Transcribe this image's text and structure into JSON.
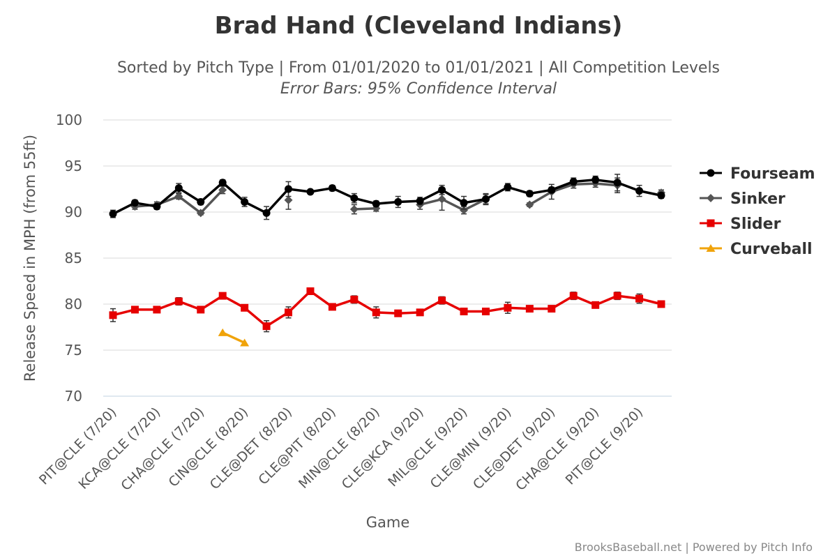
{
  "chart_data": {
    "type": "line",
    "title": "Brad Hand (Cleveland Indians)",
    "subtitle": "Sorted by Pitch Type | From 01/01/2020 to 01/01/2021 | All Competition Levels",
    "subtitle2": "Error Bars: 95% Confidence Interval",
    "xlabel": "Game",
    "ylabel": "Release Speed in MPH (from 55ft)",
    "ylim": [
      70,
      100
    ],
    "yticks": [
      70,
      75,
      80,
      85,
      90,
      95,
      100
    ],
    "grid": "horizontal",
    "legend_position": "right",
    "x_tick_labels": [
      "PIT@CLE (7/20)",
      "KCA@CLE (7/20)",
      "CHA@CLE (7/20)",
      "CIN@CLE (8/20)",
      "CLE@DET (8/20)",
      "CLE@PIT (8/20)",
      "MIN@CLE (8/20)",
      "CLE@KCA (9/20)",
      "MIL@CLE (9/20)",
      "CLE@MIN (9/20)",
      "CLE@DET (9/20)",
      "CHA@CLE (9/20)",
      "PIT@CLE (9/20)"
    ],
    "series": [
      {
        "name": "Fourseam",
        "color": "#000000",
        "marker": "circle",
        "values": [
          89.8,
          91.0,
          90.6,
          92.6,
          91.1,
          93.2,
          91.1,
          89.9,
          92.5,
          92.2,
          92.6,
          91.5,
          90.9,
          91.1,
          91.2,
          92.4,
          91.0,
          91.4,
          92.7,
          92.0,
          92.4,
          93.3,
          93.5,
          93.2,
          92.3,
          91.8
        ],
        "errors": [
          0.4,
          0.3,
          0.3,
          0.5,
          0.3,
          0.3,
          0.5,
          0.7,
          0.8,
          0.2,
          0.3,
          0.5,
          0.3,
          0.6,
          0.4,
          0.5,
          0.7,
          0.6,
          0.4,
          0.3,
          0.3,
          0.4,
          0.4,
          0.9,
          0.6,
          0.3
        ]
      },
      {
        "name": "Sinker",
        "color": "#555555",
        "marker": "diamond",
        "values": [
          null,
          90.6,
          90.8,
          91.7,
          89.9,
          92.4,
          null,
          null,
          91.3,
          null,
          null,
          90.3,
          90.4,
          null,
          90.8,
          91.4,
          90.2,
          91.4,
          null,
          90.8,
          92.2,
          93.0,
          93.1,
          92.9,
          null,
          92.1
        ],
        "errors": [
          null,
          0.3,
          0.3,
          0.3,
          0.2,
          0.4,
          null,
          null,
          1.0,
          null,
          null,
          0.5,
          0.3,
          null,
          0.5,
          1.2,
          0.4,
          0.5,
          null,
          0.2,
          0.8,
          0.4,
          0.4,
          0.8,
          null,
          0.3
        ]
      },
      {
        "name": "Slider",
        "color": "#e60000",
        "marker": "square",
        "values": [
          78.8,
          79.4,
          79.4,
          80.3,
          79.4,
          80.9,
          79.6,
          77.6,
          79.1,
          81.4,
          79.7,
          80.5,
          79.1,
          79.0,
          79.1,
          80.4,
          79.2,
          79.2,
          79.6,
          79.5,
          79.5,
          80.9,
          79.9,
          80.9,
          80.6,
          80.0
        ],
        "errors": [
          0.7,
          0.3,
          0.3,
          0.4,
          0.3,
          0.3,
          0.3,
          0.6,
          0.6,
          0.2,
          0.3,
          0.4,
          0.6,
          0.2,
          0.3,
          0.4,
          0.3,
          0.3,
          0.6,
          0.3,
          0.3,
          0.4,
          0.3,
          0.4,
          0.5,
          0.2
        ]
      },
      {
        "name": "Curveball",
        "color": "#f0a30a",
        "marker": "triangle",
        "values": [
          null,
          null,
          null,
          null,
          null,
          76.9,
          75.8,
          null,
          null,
          null,
          null,
          null,
          null,
          null,
          null,
          null,
          null,
          null,
          null,
          null,
          null,
          null,
          null,
          null,
          null,
          null
        ],
        "errors": [
          null,
          null,
          null,
          null,
          null,
          null,
          null,
          null,
          null,
          null,
          null,
          null,
          null,
          null,
          null,
          null,
          null,
          null,
          null,
          null,
          null,
          null,
          null,
          null,
          null,
          null
        ]
      }
    ]
  },
  "credits": "BrooksBaseball.net | Powered by Pitch Info"
}
